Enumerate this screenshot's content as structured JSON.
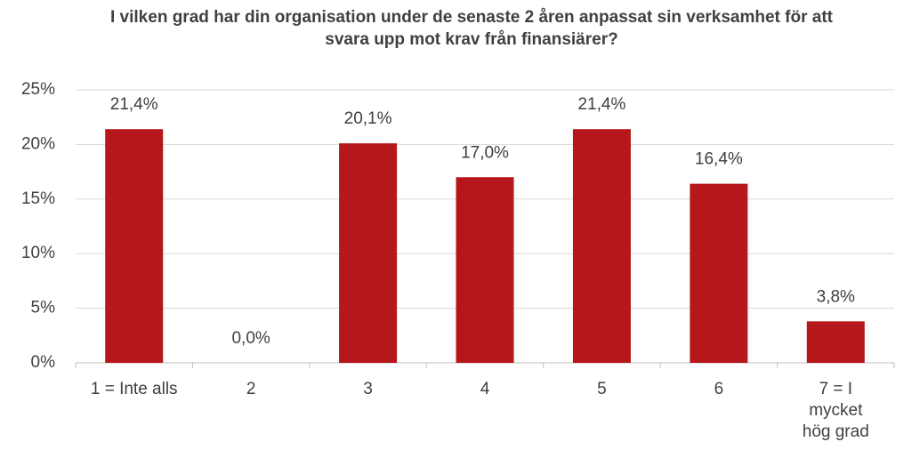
{
  "chart_data": {
    "type": "bar",
    "title": "I vilken grad har din organisation under de senaste 2 åren anpassat sin verksamhet för att svara upp mot krav från finansiärer?",
    "categories": [
      "1 = Inte alls",
      "2",
      "3",
      "4",
      "5",
      "6",
      "7 = I mycket hög grad"
    ],
    "values": [
      21.4,
      0.0,
      20.1,
      17.0,
      21.4,
      16.4,
      3.8
    ],
    "value_labels": [
      "21,4%",
      "0,0%",
      "20,1%",
      "17,0%",
      "21,4%",
      "16,4%",
      "3,8%"
    ],
    "color": "#b5171a",
    "ylim": [
      0,
      25
    ],
    "yticks": [
      {
        "value": 0,
        "label": "0%"
      },
      {
        "value": 5,
        "label": "5%"
      },
      {
        "value": 10,
        "label": "10%"
      },
      {
        "value": 15,
        "label": "15%"
      },
      {
        "value": 20,
        "label": "20%"
      },
      {
        "value": 25,
        "label": "25%"
      }
    ],
    "grid": true
  }
}
